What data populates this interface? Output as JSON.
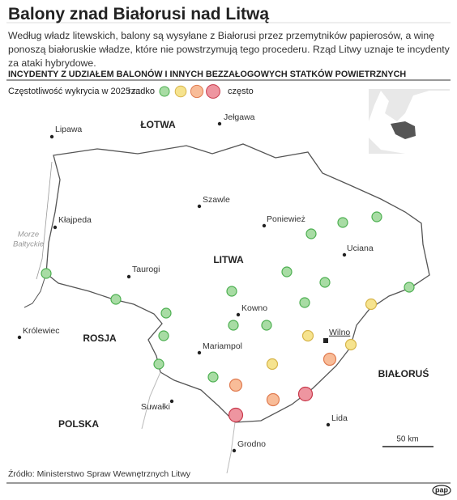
{
  "header": {
    "title": "Balony znad Białorusi nad Litwą",
    "subtitle": "Według władz litewskich, balony są wysyłane z Białorusi przez przemytników papierosów, a winę ponoszą białoruskie władze, które nie powstrzymują tego procederu. Rząd Litwy uznaje te incydenty za ataki hybrydowe.",
    "heading": "INCYDENTY Z UDZIAŁEM BALONÓW I INNYCH BEZZAŁOGOWYCH STATKÓW POWIETRZNYCH"
  },
  "legend": {
    "label": "Częstotliwość wykrycia w 2025 r.:",
    "low": "rzadko",
    "high": "często",
    "levels": [
      {
        "fill": "#a8dca4",
        "stroke": "#4caf50"
      },
      {
        "fill": "#f6e38e",
        "stroke": "#d6b44a"
      },
      {
        "fill": "#f8bc98",
        "stroke": "#e07b50"
      },
      {
        "fill": "#ee95a0",
        "stroke": "#c8394b"
      }
    ]
  },
  "map": {
    "countries": [
      "ŁOTWA",
      "LITWA",
      "ROSJA",
      "BIAŁORUŚ",
      "POLSKA"
    ],
    "sea": [
      "Morze",
      "Bałtyckie"
    ],
    "cities": [
      "Lipawa",
      "Jełgawa",
      "Szawle",
      "Poniewież",
      "Kłajpeda",
      "Uciana",
      "Taurogi",
      "Kowno",
      "Królewiec",
      "Wilno",
      "Mariampol",
      "Suwałki",
      "Lida",
      "Grodno"
    ],
    "incidents": [
      0,
      0,
      0,
      0,
      0,
      0,
      0,
      0,
      0,
      0,
      1,
      0,
      0,
      0,
      0,
      1,
      1,
      2,
      0,
      1,
      0,
      3,
      2,
      2,
      3
    ],
    "scale": "50 km"
  },
  "footer": {
    "source": "Źródło: Ministerstwo Spraw Wewnętrznych Litwy",
    "logo": "pap"
  }
}
